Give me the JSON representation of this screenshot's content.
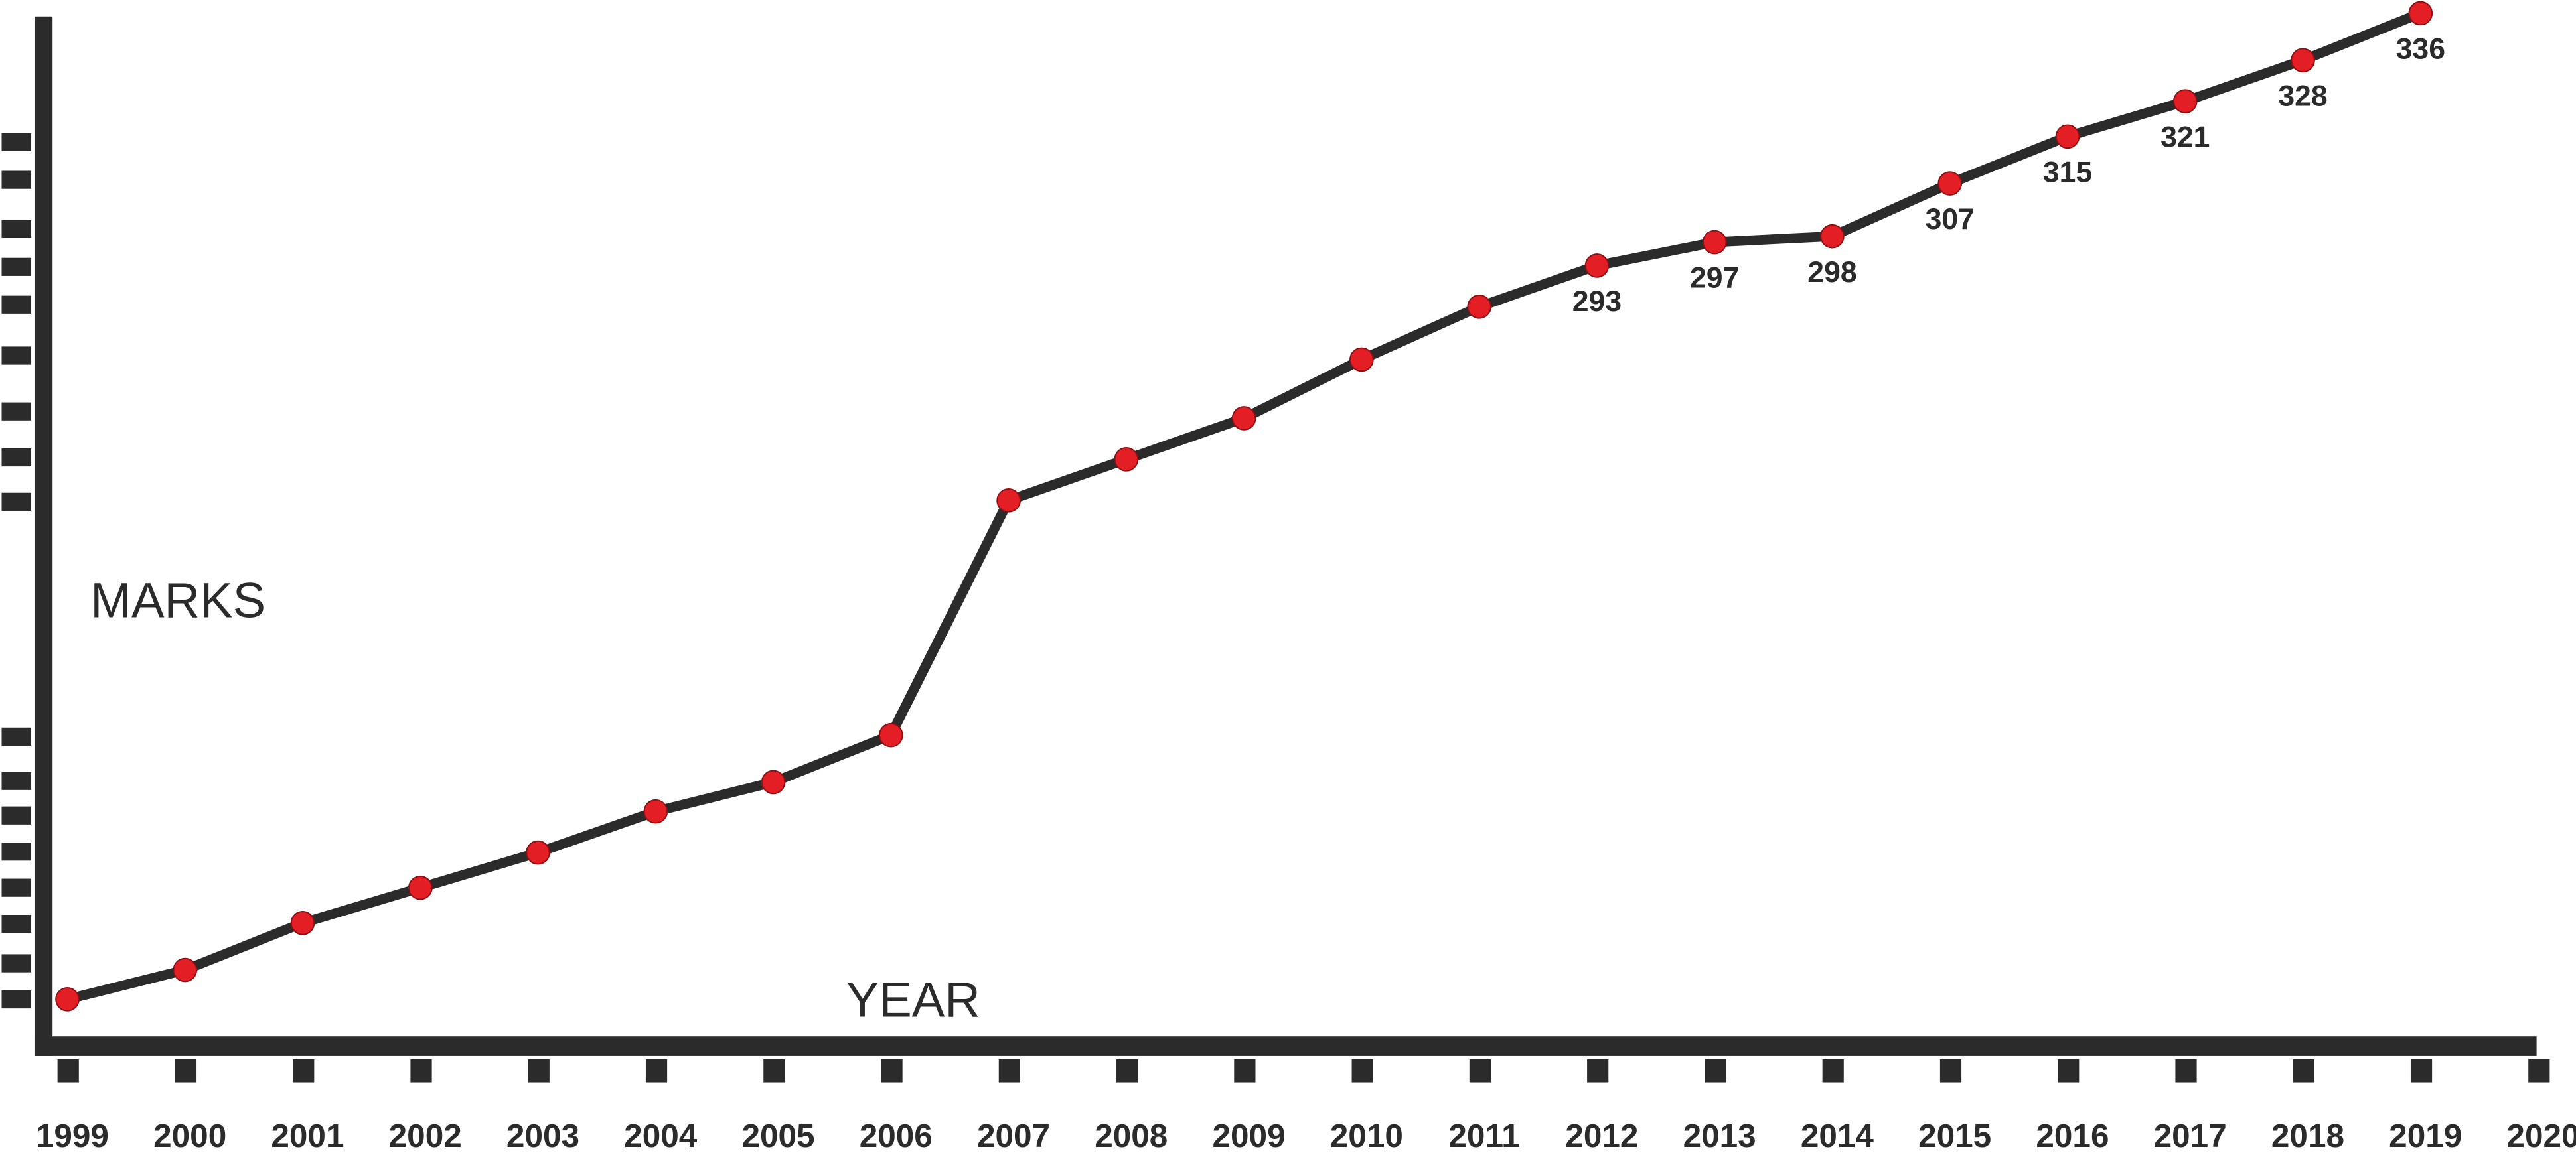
{
  "chart_data": {
    "type": "line",
    "x_label": "YEAR",
    "y_label": "MARKS",
    "x": [
      1999,
      2000,
      2001,
      2002,
      2003,
      2004,
      2005,
      2006,
      2007,
      2008,
      2009,
      2010,
      2011,
      2012,
      2013,
      2014,
      2015,
      2016,
      2017,
      2018,
      2019
    ],
    "values": [
      168,
      173,
      181,
      187,
      193,
      200,
      205,
      213,
      253,
      260,
      267,
      277,
      286,
      293,
      297,
      298,
      307,
      315,
      321,
      328,
      336
    ],
    "show_value_labels": [
      false,
      false,
      false,
      false,
      false,
      false,
      false,
      false,
      false,
      false,
      false,
      false,
      false,
      true,
      true,
      true,
      true,
      true,
      true,
      true,
      true
    ],
    "line_color": "#2b2b2b",
    "marker_color": "#e31e24",
    "xlim": [
      1999,
      2020
    ],
    "xticks": [
      1999,
      2000,
      2001,
      2002,
      2003,
      2004,
      2005,
      2006,
      2007,
      2008,
      2009,
      2010,
      2011,
      2012,
      2013,
      2014,
      2015,
      2016,
      2017,
      2018,
      2019,
      2020
    ],
    "ylim": [
      160,
      337
    ],
    "grid": false
  }
}
